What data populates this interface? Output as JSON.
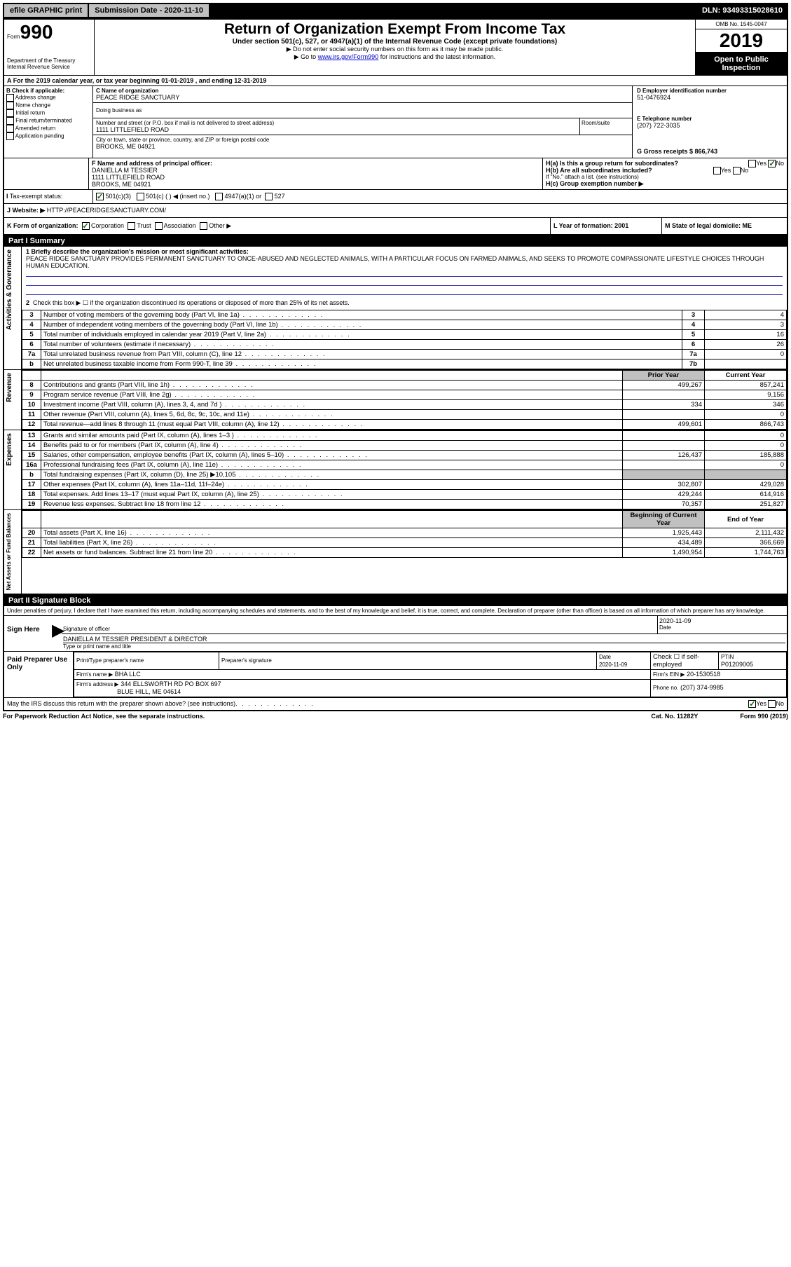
{
  "topbar": {
    "efile": "efile GRAPHIC print",
    "subdate_label": "Submission Date - 2020-11-10",
    "dln": "DLN: 93493315028610"
  },
  "header": {
    "form_label": "Form",
    "form_num": "990",
    "dept": "Department of the Treasury",
    "irs": "Internal Revenue Service",
    "title": "Return of Organization Exempt From Income Tax",
    "sub1": "Under section 501(c), 527, or 4947(a)(1) of the Internal Revenue Code (except private foundations)",
    "sub2": "▶ Do not enter social security numbers on this form as it may be made public.",
    "sub3_pre": "▶ Go to ",
    "sub3_link": "www.irs.gov/Form990",
    "sub3_post": " for instructions and the latest information.",
    "omb": "OMB No. 1545-0047",
    "year": "2019",
    "open": "Open to Public Inspection"
  },
  "periodA": "For the 2019 calendar year, or tax year beginning 01-01-2019     , and ending 12-31-2019",
  "boxB": {
    "label": "B Check if applicable:",
    "items": [
      "Address change",
      "Name change",
      "Initial return",
      "Final return/terminated",
      "Amended return",
      "Application pending"
    ]
  },
  "boxC": {
    "name_label": "C Name of organization",
    "name": "PEACE RIDGE SANCTUARY",
    "dba": "Doing business as",
    "street_label": "Number and street (or P.O. box if mail is not delivered to street address)",
    "room": "Room/suite",
    "street": "1111 LITTLEFIELD ROAD",
    "city_label": "City or town, state or province, country, and ZIP or foreign postal code",
    "city": "BROOKS, ME  04921"
  },
  "boxD": {
    "label": "D Employer identification number",
    "val": "51-0476924"
  },
  "boxE": {
    "label": "E Telephone number",
    "val": "(207) 722-3035"
  },
  "boxG": {
    "label": "G Gross receipts $ 866,743"
  },
  "boxF": {
    "label": "F  Name and address of principal officer:",
    "name": "DANIELLA M TESSIER",
    "addr1": "1111 LITTLEFIELD ROAD",
    "addr2": "BROOKS, ME  04921"
  },
  "boxH": {
    "a": "H(a)  Is this a group return for subordinates?",
    "b": "H(b)  Are all subordinates included?",
    "note": "If \"No,\" attach a list. (see instructions)",
    "c": "H(c)  Group exemption number ▶"
  },
  "taxexempt": {
    "label": "Tax-exempt status:",
    "c3": "501(c)(3)",
    "c": "501(c) (  ) ◀ (insert no.)",
    "a1": "4947(a)(1) or",
    "s527": "527"
  },
  "boxJ": {
    "label": "Website: ▶",
    "val": "HTTP://PEACERIDGESANCTUARY.COM/"
  },
  "boxK": {
    "label": "K Form of organization:",
    "corp": "Corporation",
    "trust": "Trust",
    "assoc": "Association",
    "other": "Other ▶"
  },
  "boxL": {
    "label": "L Year of formation: 2001"
  },
  "boxM": {
    "label": "M State of legal domicile: ME"
  },
  "part1": {
    "hdr": "Part I      Summary",
    "l1_label": "1  Briefly describe the organization's mission or most significant activities:",
    "l1_text": "PEACE RIDGE SANCTUARY PROVIDES PERMANENT SANCTUARY TO ONCE-ABUSED AND NEGLECTED ANIMALS, WITH A PARTICULAR FOCUS ON FARMED ANIMALS, AND SEEKS TO PROMOTE COMPASSIONATE LIFESTYLE CHOICES THROUGH HUMAN EDUCATION.",
    "l2": "Check this box ▶ ☐  if the organization discontinued its operations or disposed of more than 25% of its net assets.",
    "rows_gov": [
      {
        "n": "3",
        "t": "Number of voting members of the governing body (Part VI, line 1a)",
        "box": "3",
        "v": "4"
      },
      {
        "n": "4",
        "t": "Number of independent voting members of the governing body (Part VI, line 1b)",
        "box": "4",
        "v": "3"
      },
      {
        "n": "5",
        "t": "Total number of individuals employed in calendar year 2019 (Part V, line 2a)",
        "box": "5",
        "v": "16"
      },
      {
        "n": "6",
        "t": "Total number of volunteers (estimate if necessary)",
        "box": "6",
        "v": "26"
      },
      {
        "n": "7a",
        "t": "Total unrelated business revenue from Part VIII, column (C), line 12",
        "box": "7a",
        "v": "0"
      },
      {
        "n": "b",
        "t": "Net unrelated business taxable income from Form 990-T, line 39",
        "box": "7b",
        "v": ""
      }
    ],
    "col_prior": "Prior Year",
    "col_curr": "Current Year",
    "rows_rev": [
      {
        "n": "8",
        "t": "Contributions and grants (Part VIII, line 1h)",
        "p": "499,267",
        "c": "857,241"
      },
      {
        "n": "9",
        "t": "Program service revenue (Part VIII, line 2g)",
        "p": "",
        "c": "9,156"
      },
      {
        "n": "10",
        "t": "Investment income (Part VIII, column (A), lines 3, 4, and 7d )",
        "p": "334",
        "c": "346"
      },
      {
        "n": "11",
        "t": "Other revenue (Part VIII, column (A), lines 5, 6d, 8c, 9c, 10c, and 11e)",
        "p": "",
        "c": "0"
      },
      {
        "n": "12",
        "t": "Total revenue—add lines 8 through 11 (must equal Part VIII, column (A), line 12)",
        "p": "499,601",
        "c": "866,743"
      }
    ],
    "rows_exp": [
      {
        "n": "13",
        "t": "Grants and similar amounts paid (Part IX, column (A), lines 1–3 )",
        "p": "",
        "c": "0"
      },
      {
        "n": "14",
        "t": "Benefits paid to or for members (Part IX, column (A), line 4)",
        "p": "",
        "c": "0"
      },
      {
        "n": "15",
        "t": "Salaries, other compensation, employee benefits (Part IX, column (A), lines 5–10)",
        "p": "126,437",
        "c": "185,888"
      },
      {
        "n": "16a",
        "t": "Professional fundraising fees (Part IX, column (A), line 11e)",
        "p": "",
        "c": "0"
      },
      {
        "n": "b",
        "t": "Total fundraising expenses (Part IX, column (D), line 25) ▶10,105",
        "p": "__shade__",
        "c": "__shade__"
      },
      {
        "n": "17",
        "t": "Other expenses (Part IX, column (A), lines 11a–11d, 11f–24e)",
        "p": "302,807",
        "c": "429,028"
      },
      {
        "n": "18",
        "t": "Total expenses. Add lines 13–17 (must equal Part IX, column (A), line 25)",
        "p": "429,244",
        "c": "614,916"
      },
      {
        "n": "19",
        "t": "Revenue less expenses. Subtract line 18 from line 12",
        "p": "70,357",
        "c": "251,827"
      }
    ],
    "col_beg": "Beginning of Current Year",
    "col_end": "End of Year",
    "rows_net": [
      {
        "n": "20",
        "t": "Total assets (Part X, line 16)",
        "p": "1,925,443",
        "c": "2,111,432"
      },
      {
        "n": "21",
        "t": "Total liabilities (Part X, line 26)",
        "p": "434,489",
        "c": "366,669"
      },
      {
        "n": "22",
        "t": "Net assets or fund balances. Subtract line 21 from line 20",
        "p": "1,490,954",
        "c": "1,744,763"
      }
    ],
    "side_gov": "Activities & Governance",
    "side_rev": "Revenue",
    "side_exp": "Expenses",
    "side_net": "Net Assets or Fund Balances"
  },
  "part2": {
    "hdr": "Part II     Signature Block",
    "penalty": "Under penalties of perjury, I declare that I have examined this return, including accompanying schedules and statements, and to the best of my knowledge and belief, it is true, correct, and complete. Declaration of preparer (other than officer) is based on all information of which preparer has any knowledge.",
    "sign_here": "Sign Here",
    "sig_officer": "Signature of officer",
    "sig_date": "2020-11-09",
    "date_label": "Date",
    "sig_name": "DANIELLA M TESSIER  PRESIDENT & DIRECTOR",
    "sig_type": "Type or print name and title",
    "paid": "Paid Preparer Use Only",
    "prep_name_l": "Print/Type preparer's name",
    "prep_sig_l": "Preparer's signature",
    "prep_date_l": "Date",
    "prep_date": "2020-11-09",
    "prep_check": "Check ☐ if self-employed",
    "ptin_l": "PTIN",
    "ptin": "P01209005",
    "firm_name_l": "Firm's name    ▶",
    "firm_name": "BHA LLC",
    "firm_ein_l": "Firm's EIN ▶",
    "firm_ein": "20-1530518",
    "firm_addr_l": "Firm's address ▶",
    "firm_addr1": "344 ELLSWORTH RD PO BOX 697",
    "firm_addr2": "BLUE HILL, ME  04614",
    "phone_l": "Phone no.",
    "phone": "(207) 374-9985",
    "discuss": "May the IRS discuss this return with the preparer shown above? (see instructions)",
    "yes": "Yes",
    "no": "No"
  },
  "footer": {
    "pra": "For Paperwork Reduction Act Notice, see the separate instructions.",
    "cat": "Cat. No. 11282Y",
    "form": "Form 990 (2019)"
  }
}
